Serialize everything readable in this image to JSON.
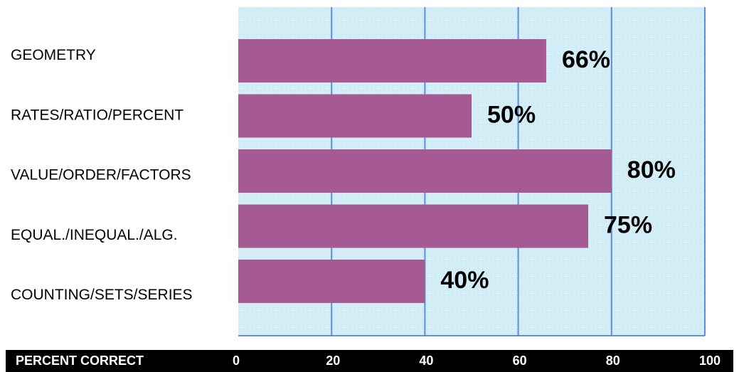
{
  "chart_data": {
    "type": "bar",
    "orientation": "horizontal",
    "categories": [
      "GEOMETRY",
      "RATES/RATIO/PERCENT",
      "VALUE/ORDER/FACTORS",
      "EQUAL./INEQUAL./ALG.",
      "COUNTING/SETS/SERIES"
    ],
    "values": [
      66,
      50,
      80,
      75,
      40
    ],
    "value_labels": [
      "66%",
      "50%",
      "80%",
      "75%",
      "40%"
    ],
    "xlabel": "PERCENT CORRECT",
    "xlim": [
      0,
      100
    ],
    "xticks": [
      0,
      20,
      40,
      60,
      80,
      100
    ],
    "xtick_labels": [
      "0",
      "20",
      "40",
      "60",
      "80",
      "100"
    ],
    "grid": true,
    "bar_color": "#A65A94",
    "plot_background": "#D4EEF8",
    "grid_color": "#5B8FD8",
    "axis_bar_color": "#000000"
  }
}
